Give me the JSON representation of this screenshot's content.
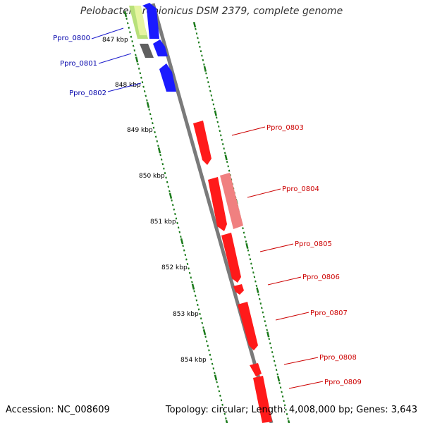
{
  "title": "Pelobacter propionicus DSM 2379, complete genome",
  "footer": {
    "accession": "Accession: NC_008609",
    "summary": "Topology: circular; Length: 4,008,000 bp; Genes: 3,643"
  },
  "colors": {
    "forward_gene": "#0000ff",
    "reverse_gene": "#ff0000",
    "pseudo_gene": "#f08080",
    "backbone": "#888888",
    "ticks": "#1a7a1a",
    "forward_label": "#0000aa",
    "reverse_label": "#cc0000"
  },
  "ruler": {
    "ticks": [
      "847 kbp",
      "848 kbp",
      "849 kbp",
      "850 kbp",
      "851 kbp",
      "852 kbp",
      "853 kbp",
      "854 kbp"
    ]
  },
  "genes_forward": [
    {
      "label": "Ppro_0800"
    },
    {
      "label": "Ppro_0801"
    },
    {
      "label": "Ppro_0802"
    }
  ],
  "genes_reverse": [
    {
      "label": "Ppro_0803"
    },
    {
      "label": "Ppro_0804"
    },
    {
      "label": "Ppro_0805"
    },
    {
      "label": "Ppro_0806"
    },
    {
      "label": "Ppro_0807"
    },
    {
      "label": "Ppro_0808"
    },
    {
      "label": "Ppro_0809"
    }
  ]
}
